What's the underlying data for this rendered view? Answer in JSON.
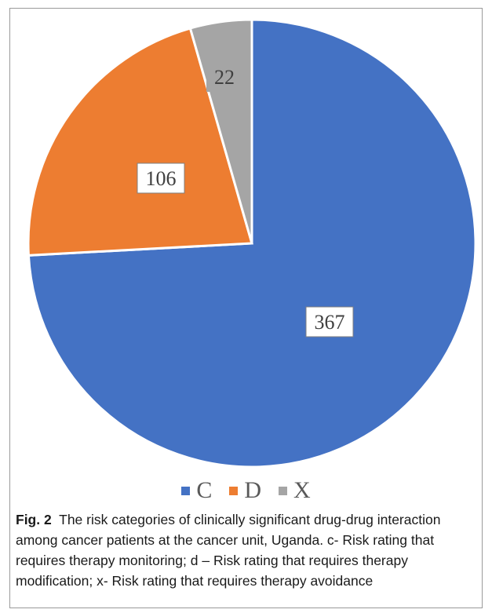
{
  "chart_data": {
    "type": "pie",
    "categories": [
      "C",
      "D",
      "X"
    ],
    "values": [
      367,
      106,
      22
    ],
    "colors": [
      "#4472C4",
      "#ED7D31",
      "#A5A5A5"
    ],
    "legend_position": "bottom",
    "data_labels": [
      "367",
      "106",
      "22"
    ]
  },
  "caption": {
    "figure_label": "Fig. 2",
    "text": "The risk categories of clinically significant drug-drug interaction among cancer patients at the cancer unit, Uganda. c- Risk rating that requires therapy monitoring; d – Risk rating that requires therapy modification; x- Risk rating that requires therapy avoidance"
  }
}
